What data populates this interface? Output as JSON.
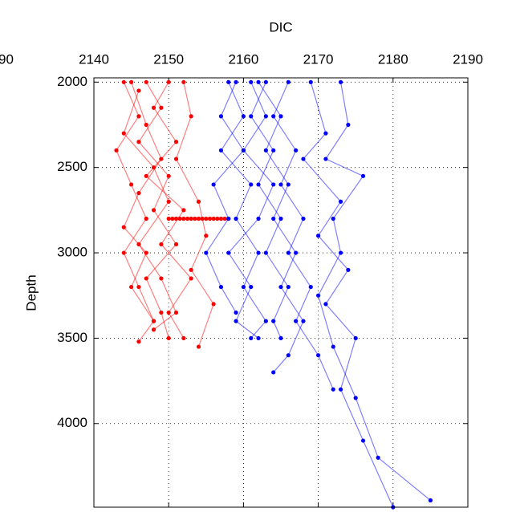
{
  "chart_data": {
    "type": "line",
    "xlabel": "DIC",
    "ylabel": "Depth",
    "clipped_label": "90",
    "x_axis_position": "top",
    "y_reversed": true,
    "grid": true,
    "xlim": [
      2140,
      2190
    ],
    "xticks": [
      2140,
      2150,
      2160,
      2170,
      2180,
      2190
    ],
    "ylim": [
      1975,
      4490
    ],
    "yticks": [
      2000,
      2500,
      3000,
      3500,
      4000
    ],
    "series": [
      {
        "color": "#ff0000",
        "x": [
          2144,
          2146,
          2143,
          2145,
          2147,
          2144,
          2146,
          2148
        ],
        "y": [
          2000,
          2200,
          2400,
          2600,
          2800,
          3000,
          3200,
          3400
        ]
      },
      {
        "color": "#ff0000",
        "x": [
          2147,
          2149,
          2146,
          2150,
          2148,
          2151,
          2147,
          2149,
          2150
        ],
        "y": [
          2000,
          2150,
          2350,
          2550,
          2750,
          2950,
          3150,
          3350,
          3500
        ]
      },
      {
        "color": "#ff0000",
        "x": [
          2150,
          2148,
          2151,
          2147,
          2152,
          2149,
          2153,
          2150,
          2152
        ],
        "y": [
          2000,
          2150,
          2350,
          2550,
          2750,
          2950,
          3150,
          3350,
          3500
        ]
      },
      {
        "color": "#ff0000",
        "x": [
          2145,
          2147,
          2149,
          2146,
          2144,
          2147,
          2145,
          2148,
          2146
        ],
        "y": [
          2000,
          2250,
          2450,
          2650,
          2850,
          3000,
          3200,
          3400,
          3520
        ]
      },
      {
        "color": "#ff0000",
        "x": [
          2152,
          2153,
          2151,
          2154,
          2155,
          2153,
          2156,
          2154
        ],
        "y": [
          2000,
          2200,
          2450,
          2700,
          2900,
          3100,
          3300,
          3550
        ]
      },
      {
        "color": "#ff0000",
        "x": [
          2146,
          2144,
          2148,
          2150,
          2146,
          2149,
          2151,
          2148
        ],
        "y": [
          2050,
          2300,
          2500,
          2700,
          2950,
          3150,
          3350,
          3450
        ]
      },
      {
        "color": "#ff0000",
        "x": [
          2150,
          2150.5,
          2151,
          2151.5,
          2152,
          2152.5,
          2153,
          2153.5,
          2154,
          2154.5,
          2155,
          2155.5,
          2156,
          2156.5,
          2157,
          2157.5,
          2158
        ],
        "y": [
          2800,
          2800,
          2800,
          2800,
          2800,
          2800,
          2800,
          2800,
          2800,
          2800,
          2800,
          2800,
          2800,
          2800,
          2800,
          2800,
          2800
        ]
      },
      {
        "color": "#0000ff",
        "x": [
          2158,
          2160,
          2157,
          2161,
          2159,
          2162,
          2160,
          2163,
          2161
        ],
        "y": [
          2000,
          2200,
          2400,
          2600,
          2800,
          3000,
          3200,
          3400,
          3500
        ]
      },
      {
        "color": "#0000ff",
        "x": [
          2163,
          2161,
          2164,
          2162,
          2165,
          2163,
          2166,
          2164,
          2165
        ],
        "y": [
          2000,
          2200,
          2400,
          2600,
          2800,
          3000,
          3200,
          3400,
          3500
        ]
      },
      {
        "color": "#0000ff",
        "x": [
          2161,
          2163,
          2160,
          2164,
          2162,
          2158,
          2161,
          2159,
          2162
        ],
        "y": [
          2000,
          2200,
          2400,
          2600,
          2800,
          3000,
          3200,
          3400,
          3500
        ]
      },
      {
        "color": "#0000ff",
        "x": [
          2166,
          2164,
          2167,
          2165,
          2168,
          2166,
          2169,
          2167,
          2170,
          2172
        ],
        "y": [
          2000,
          2200,
          2400,
          2600,
          2800,
          3000,
          3200,
          3400,
          3600,
          3800
        ]
      },
      {
        "color": "#0000ff",
        "x": [
          2169,
          2171,
          2168,
          2173,
          2170,
          2174,
          2171,
          2175,
          2173,
          2176,
          2180
        ],
        "y": [
          2000,
          2300,
          2450,
          2700,
          2900,
          3100,
          3300,
          3500,
          3800,
          4100,
          4490
        ]
      },
      {
        "color": "#0000ff",
        "x": [
          2173,
          2174,
          2171,
          2176,
          2172,
          2173,
          2170,
          2172,
          2175,
          2178,
          2185
        ],
        "y": [
          2000,
          2250,
          2450,
          2550,
          2800,
          3000,
          3250,
          3550,
          3850,
          4200,
          4450
        ]
      },
      {
        "color": "#0000ff",
        "x": [
          2159,
          2157,
          2160,
          2156,
          2158,
          2155,
          2157,
          2159
        ],
        "y": [
          2000,
          2200,
          2400,
          2600,
          2800,
          3000,
          3200,
          3350
        ]
      },
      {
        "color": "#0000ff",
        "x": [
          2162,
          2165,
          2163,
          2166,
          2164,
          2167,
          2165,
          2168,
          2166,
          2164
        ],
        "y": [
          2000,
          2200,
          2400,
          2600,
          2800,
          3000,
          3200,
          3400,
          3600,
          3700
        ]
      }
    ]
  }
}
